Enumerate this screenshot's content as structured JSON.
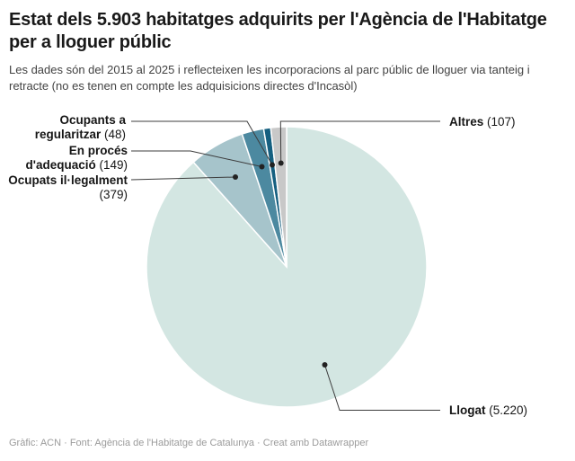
{
  "header": {
    "title": "Estat dels 5.903 habitatges adquirits per l'Agència de l'Habitatge per a lloguer públic",
    "subtitle": "Les dades són del 2015 al 2025 i reflecteixen les incorporacions al parc públic de lloguer via tanteig i retracte (no es tenen en compte les adquisicions directes d'Incasòl)"
  },
  "chart_data": {
    "type": "pie",
    "title": "Estat dels 5.903 habitatges adquirits per l'Agència de l'Habitatge per a lloguer públic",
    "total": 5903,
    "start_angle_deg": 0,
    "direction": "clockwise",
    "legend_position": "callout-labels",
    "slices": [
      {
        "id": "llogat",
        "label": "Llogat",
        "value": 5220,
        "value_display": "(5.220)",
        "color": "#d3e6e2"
      },
      {
        "id": "ocupats-illegalment",
        "label": "Ocupats il·legalment",
        "value": 379,
        "value_display": "(379)",
        "color": "#a6c4cb"
      },
      {
        "id": "en-proces-dadequacio",
        "label": "En procés d'adequació",
        "value": 149,
        "value_display": "(149)",
        "color": "#4c89a0"
      },
      {
        "id": "ocupants-a-regularitzar",
        "label": "Ocupants a regularitzar",
        "value": 48,
        "value_display": "(48)",
        "color": "#155f80"
      },
      {
        "id": "altres",
        "label": "Altres",
        "value": 107,
        "value_display": "(107)",
        "color": "#c8c8c8"
      }
    ]
  },
  "footer": {
    "credit": "Gràfic: ACN · Font: Agència de l'Habitatge de Catalunya · Creat amb Datawrapper"
  }
}
